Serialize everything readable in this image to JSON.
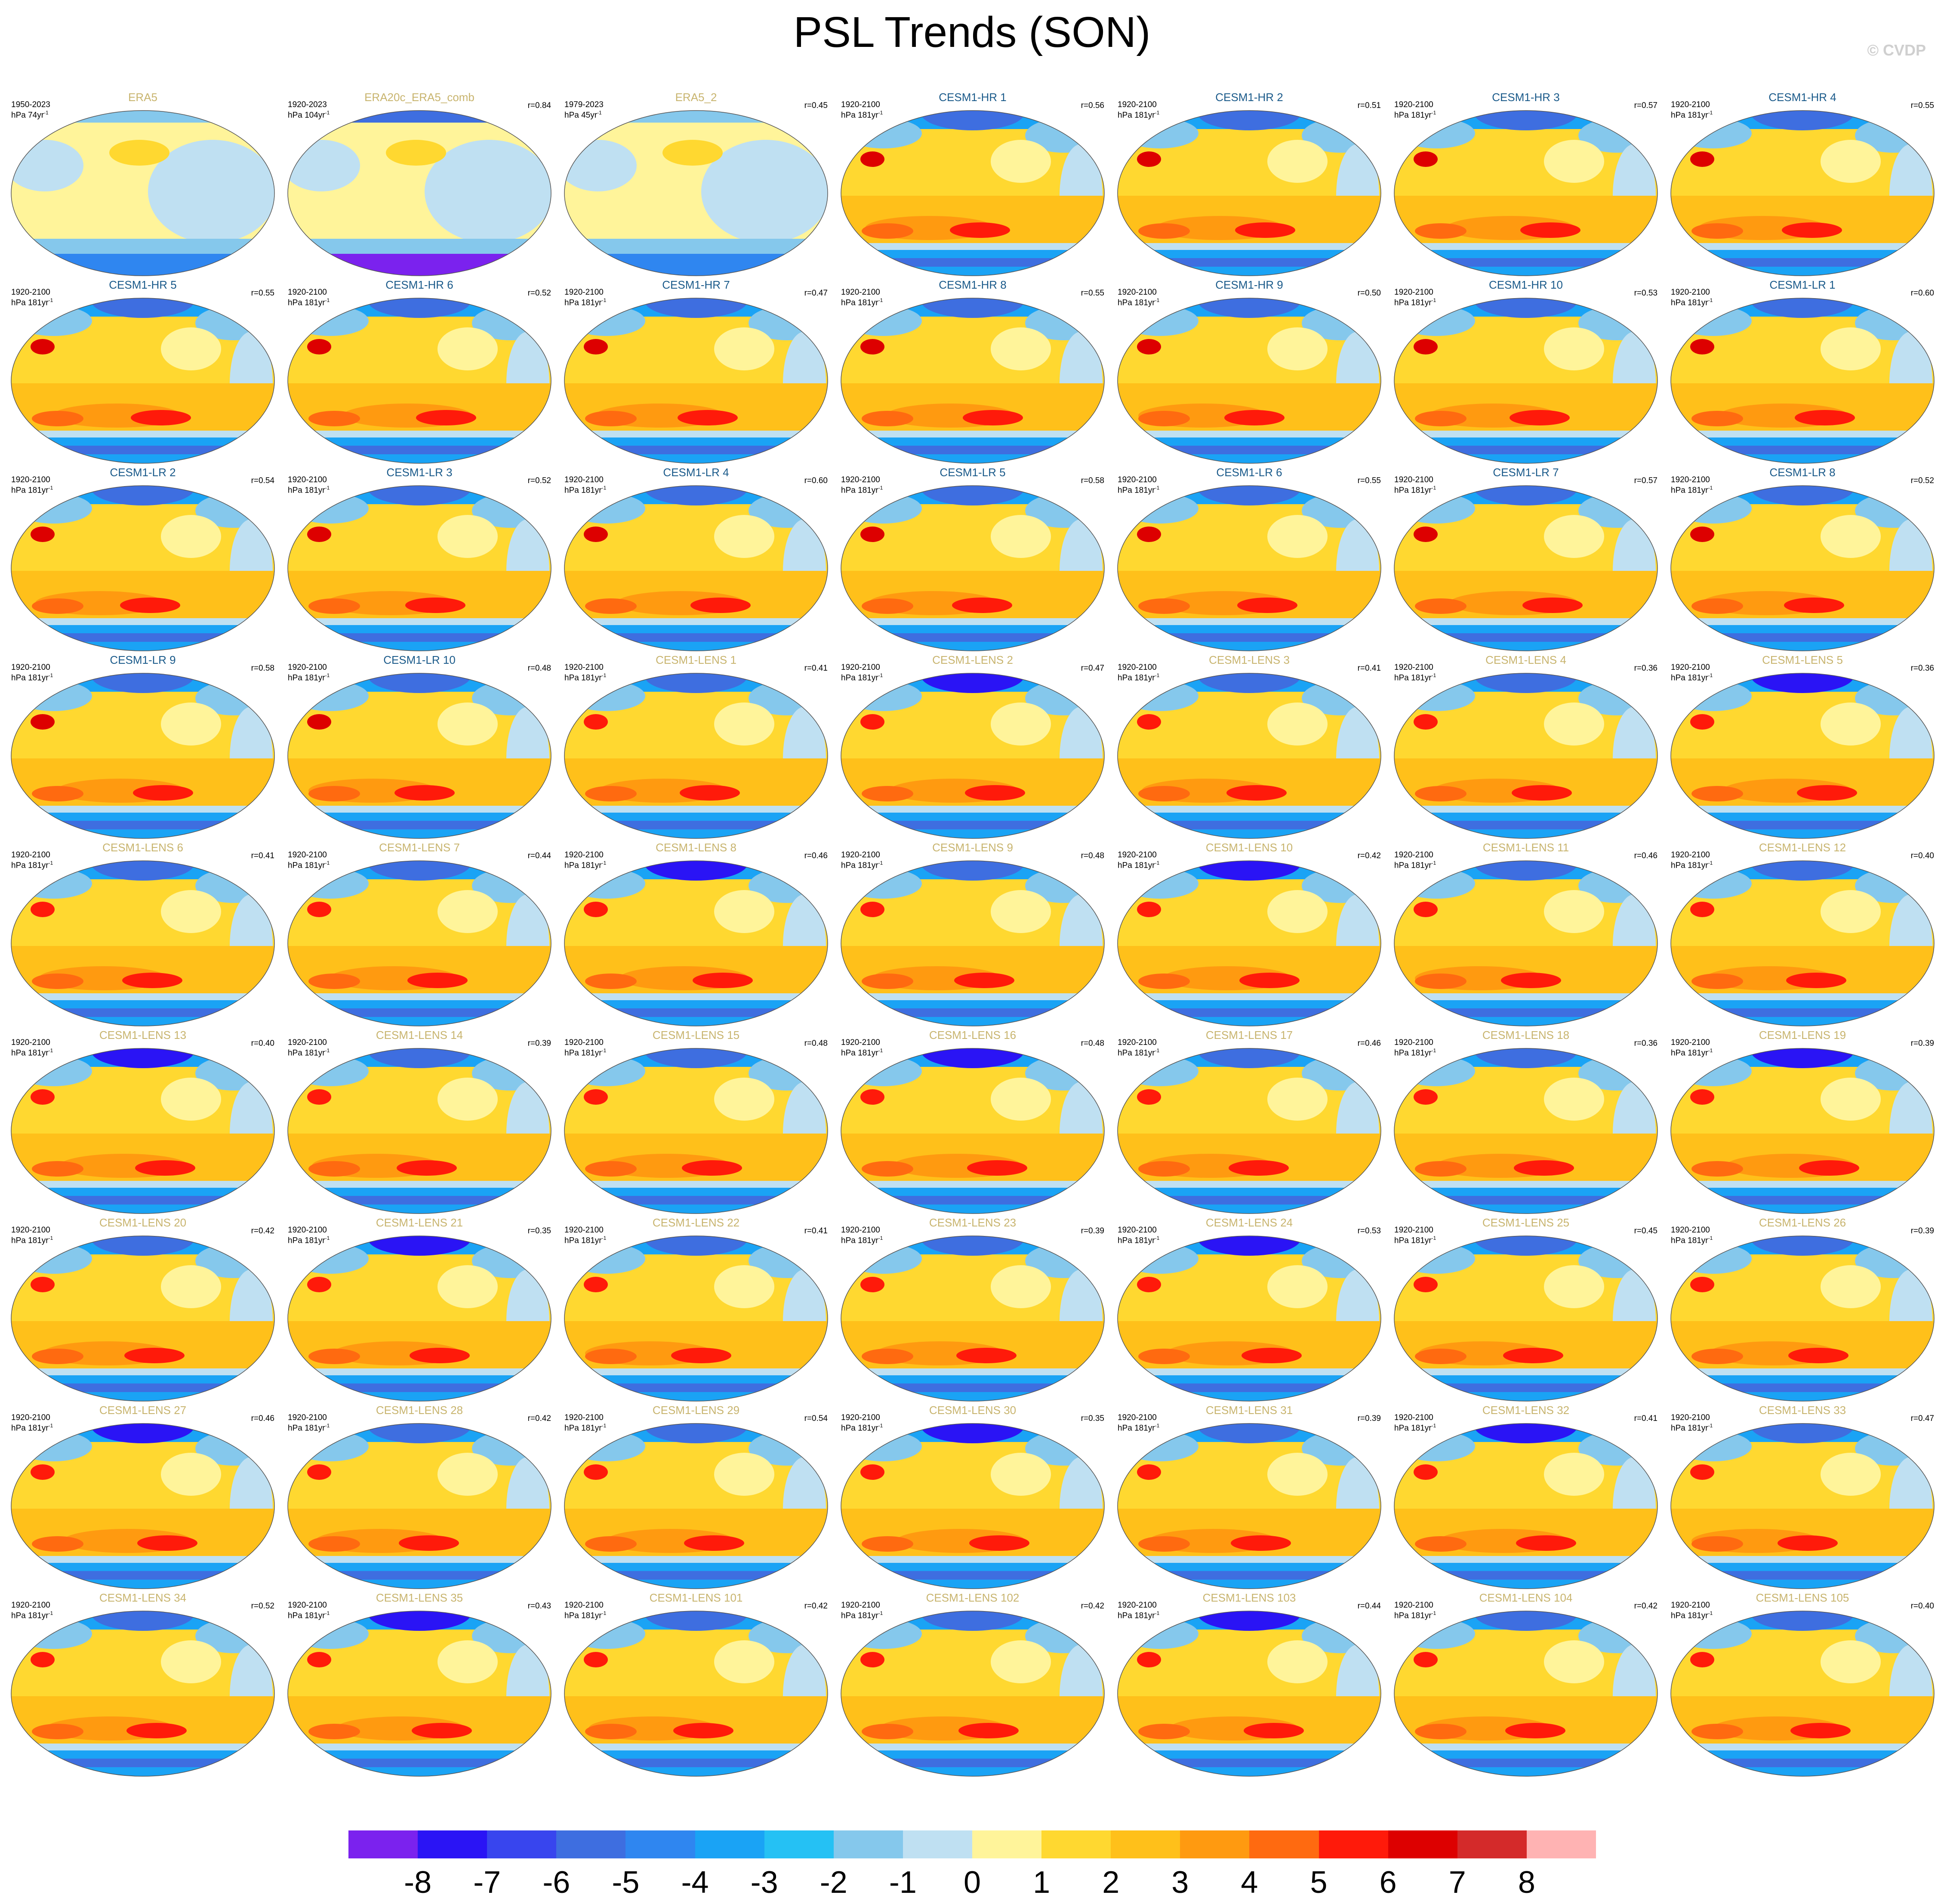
{
  "title": "PSL Trends (SON)",
  "credit": "© CVDP",
  "panels": [
    {
      "name": "ERA5",
      "period": "1950-2023",
      "units": "hPa 74yr",
      "r": "",
      "kind": "obs"
    },
    {
      "name": "ERA20c_ERA5_comb",
      "period": "1920-2023",
      "units": "hPa 104yr",
      "r": "r=0.84",
      "kind": "obs"
    },
    {
      "name": "ERA5_2",
      "period": "1979-2023",
      "units": "hPa 45yr",
      "r": "r=0.45",
      "kind": "obs"
    },
    {
      "name": "CESM1-HR 1",
      "period": "1920-2100",
      "units": "hPa 181yr",
      "r": "r=0.56",
      "kind": "hr"
    },
    {
      "name": "CESM1-HR 2",
      "period": "1920-2100",
      "units": "hPa 181yr",
      "r": "r=0.51",
      "kind": "hr"
    },
    {
      "name": "CESM1-HR 3",
      "period": "1920-2100",
      "units": "hPa 181yr",
      "r": "r=0.57",
      "kind": "hr"
    },
    {
      "name": "CESM1-HR 4",
      "period": "1920-2100",
      "units": "hPa 181yr",
      "r": "r=0.55",
      "kind": "hr"
    },
    {
      "name": "CESM1-HR 5",
      "period": "1920-2100",
      "units": "hPa 181yr",
      "r": "r=0.55",
      "kind": "hr"
    },
    {
      "name": "CESM1-HR 6",
      "period": "1920-2100",
      "units": "hPa 181yr",
      "r": "r=0.52",
      "kind": "hr"
    },
    {
      "name": "CESM1-HR 7",
      "period": "1920-2100",
      "units": "hPa 181yr",
      "r": "r=0.47",
      "kind": "hr"
    },
    {
      "name": "CESM1-HR 8",
      "period": "1920-2100",
      "units": "hPa 181yr",
      "r": "r=0.55",
      "kind": "hr"
    },
    {
      "name": "CESM1-HR 9",
      "period": "1920-2100",
      "units": "hPa 181yr",
      "r": "r=0.50",
      "kind": "hr"
    },
    {
      "name": "CESM1-HR 10",
      "period": "1920-2100",
      "units": "hPa 181yr",
      "r": "r=0.53",
      "kind": "hr"
    },
    {
      "name": "CESM1-LR 1",
      "period": "1920-2100",
      "units": "hPa 181yr",
      "r": "r=0.60",
      "kind": "lr"
    },
    {
      "name": "CESM1-LR 2",
      "period": "1920-2100",
      "units": "hPa 181yr",
      "r": "r=0.54",
      "kind": "lr"
    },
    {
      "name": "CESM1-LR 3",
      "period": "1920-2100",
      "units": "hPa 181yr",
      "r": "r=0.52",
      "kind": "lr"
    },
    {
      "name": "CESM1-LR 4",
      "period": "1920-2100",
      "units": "hPa 181yr",
      "r": "r=0.60",
      "kind": "lr"
    },
    {
      "name": "CESM1-LR 5",
      "period": "1920-2100",
      "units": "hPa 181yr",
      "r": "r=0.58",
      "kind": "lr"
    },
    {
      "name": "CESM1-LR 6",
      "period": "1920-2100",
      "units": "hPa 181yr",
      "r": "r=0.55",
      "kind": "lr"
    },
    {
      "name": "CESM1-LR 7",
      "period": "1920-2100",
      "units": "hPa 181yr",
      "r": "r=0.57",
      "kind": "lr"
    },
    {
      "name": "CESM1-LR 8",
      "period": "1920-2100",
      "units": "hPa 181yr",
      "r": "r=0.52",
      "kind": "lr"
    },
    {
      "name": "CESM1-LR 9",
      "period": "1920-2100",
      "units": "hPa 181yr",
      "r": "r=0.58",
      "kind": "lr"
    },
    {
      "name": "CESM1-LR 10",
      "period": "1920-2100",
      "units": "hPa 181yr",
      "r": "r=0.48",
      "kind": "lr"
    },
    {
      "name": "CESM1-LENS 1",
      "period": "1920-2100",
      "units": "hPa 181yr",
      "r": "r=0.41",
      "kind": "lens"
    },
    {
      "name": "CESM1-LENS 2",
      "period": "1920-2100",
      "units": "hPa 181yr",
      "r": "r=0.47",
      "kind": "lens"
    },
    {
      "name": "CESM1-LENS 3",
      "period": "1920-2100",
      "units": "hPa 181yr",
      "r": "r=0.41",
      "kind": "lens"
    },
    {
      "name": "CESM1-LENS 4",
      "period": "1920-2100",
      "units": "hPa 181yr",
      "r": "r=0.36",
      "kind": "lens"
    },
    {
      "name": "CESM1-LENS 5",
      "period": "1920-2100",
      "units": "hPa 181yr",
      "r": "r=0.36",
      "kind": "lens"
    },
    {
      "name": "CESM1-LENS 6",
      "period": "1920-2100",
      "units": "hPa 181yr",
      "r": "r=0.41",
      "kind": "lens"
    },
    {
      "name": "CESM1-LENS 7",
      "period": "1920-2100",
      "units": "hPa 181yr",
      "r": "r=0.44",
      "kind": "lens"
    },
    {
      "name": "CESM1-LENS 8",
      "period": "1920-2100",
      "units": "hPa 181yr",
      "r": "r=0.46",
      "kind": "lens"
    },
    {
      "name": "CESM1-LENS 9",
      "period": "1920-2100",
      "units": "hPa 181yr",
      "r": "r=0.48",
      "kind": "lens"
    },
    {
      "name": "CESM1-LENS 10",
      "period": "1920-2100",
      "units": "hPa 181yr",
      "r": "r=0.42",
      "kind": "lens"
    },
    {
      "name": "CESM1-LENS 11",
      "period": "1920-2100",
      "units": "hPa 181yr",
      "r": "r=0.46",
      "kind": "lens"
    },
    {
      "name": "CESM1-LENS 12",
      "period": "1920-2100",
      "units": "hPa 181yr",
      "r": "r=0.40",
      "kind": "lens"
    },
    {
      "name": "CESM1-LENS 13",
      "period": "1920-2100",
      "units": "hPa 181yr",
      "r": "r=0.40",
      "kind": "lens"
    },
    {
      "name": "CESM1-LENS 14",
      "period": "1920-2100",
      "units": "hPa 181yr",
      "r": "r=0.39",
      "kind": "lens"
    },
    {
      "name": "CESM1-LENS 15",
      "period": "1920-2100",
      "units": "hPa 181yr",
      "r": "r=0.48",
      "kind": "lens"
    },
    {
      "name": "CESM1-LENS 16",
      "period": "1920-2100",
      "units": "hPa 181yr",
      "r": "r=0.48",
      "kind": "lens"
    },
    {
      "name": "CESM1-LENS 17",
      "period": "1920-2100",
      "units": "hPa 181yr",
      "r": "r=0.46",
      "kind": "lens"
    },
    {
      "name": "CESM1-LENS 18",
      "period": "1920-2100",
      "units": "hPa 181yr",
      "r": "r=0.36",
      "kind": "lens"
    },
    {
      "name": "CESM1-LENS 19",
      "period": "1920-2100",
      "units": "hPa 181yr",
      "r": "r=0.39",
      "kind": "lens"
    },
    {
      "name": "CESM1-LENS 20",
      "period": "1920-2100",
      "units": "hPa 181yr",
      "r": "r=0.42",
      "kind": "lens"
    },
    {
      "name": "CESM1-LENS 21",
      "period": "1920-2100",
      "units": "hPa 181yr",
      "r": "r=0.35",
      "kind": "lens"
    },
    {
      "name": "CESM1-LENS 22",
      "period": "1920-2100",
      "units": "hPa 181yr",
      "r": "r=0.41",
      "kind": "lens"
    },
    {
      "name": "CESM1-LENS 23",
      "period": "1920-2100",
      "units": "hPa 181yr",
      "r": "r=0.39",
      "kind": "lens"
    },
    {
      "name": "CESM1-LENS 24",
      "period": "1920-2100",
      "units": "hPa 181yr",
      "r": "r=0.53",
      "kind": "lens"
    },
    {
      "name": "CESM1-LENS 25",
      "period": "1920-2100",
      "units": "hPa 181yr",
      "r": "r=0.45",
      "kind": "lens"
    },
    {
      "name": "CESM1-LENS 26",
      "period": "1920-2100",
      "units": "hPa 181yr",
      "r": "r=0.39",
      "kind": "lens"
    },
    {
      "name": "CESM1-LENS 27",
      "period": "1920-2100",
      "units": "hPa 181yr",
      "r": "r=0.46",
      "kind": "lens"
    },
    {
      "name": "CESM1-LENS 28",
      "period": "1920-2100",
      "units": "hPa 181yr",
      "r": "r=0.42",
      "kind": "lens"
    },
    {
      "name": "CESM1-LENS 29",
      "period": "1920-2100",
      "units": "hPa 181yr",
      "r": "r=0.54",
      "kind": "lens"
    },
    {
      "name": "CESM1-LENS 30",
      "period": "1920-2100",
      "units": "hPa 181yr",
      "r": "r=0.35",
      "kind": "lens"
    },
    {
      "name": "CESM1-LENS 31",
      "period": "1920-2100",
      "units": "hPa 181yr",
      "r": "r=0.39",
      "kind": "lens"
    },
    {
      "name": "CESM1-LENS 32",
      "period": "1920-2100",
      "units": "hPa 181yr",
      "r": "r=0.41",
      "kind": "lens"
    },
    {
      "name": "CESM1-LENS 33",
      "period": "1920-2100",
      "units": "hPa 181yr",
      "r": "r=0.47",
      "kind": "lens"
    },
    {
      "name": "CESM1-LENS 34",
      "period": "1920-2100",
      "units": "hPa 181yr",
      "r": "r=0.52",
      "kind": "lens"
    },
    {
      "name": "CESM1-LENS 35",
      "period": "1920-2100",
      "units": "hPa 181yr",
      "r": "r=0.43",
      "kind": "lens"
    },
    {
      "name": "CESM1-LENS 101",
      "period": "1920-2100",
      "units": "hPa 181yr",
      "r": "r=0.42",
      "kind": "lens"
    },
    {
      "name": "CESM1-LENS 102",
      "period": "1920-2100",
      "units": "hPa 181yr",
      "r": "r=0.42",
      "kind": "lens"
    },
    {
      "name": "CESM1-LENS 103",
      "period": "1920-2100",
      "units": "hPa 181yr",
      "r": "r=0.44",
      "kind": "lens"
    },
    {
      "name": "CESM1-LENS 104",
      "period": "1920-2100",
      "units": "hPa 181yr",
      "r": "r=0.42",
      "kind": "lens"
    },
    {
      "name": "CESM1-LENS 105",
      "period": "1920-2100",
      "units": "hPa 181yr",
      "r": "r=0.40",
      "kind": "lens"
    }
  ],
  "units_exponent": "-1",
  "title_colors": {
    "obs": "#c8b46e",
    "hr": "#1a5a8a",
    "lr": "#1a5a8a",
    "lens": "#c8b46e"
  },
  "colorbar": {
    "colors": [
      "#7b22ee",
      "#2a14f5",
      "#3845ee",
      "#3e6ee0",
      "#2f86f0",
      "#1aa3f5",
      "#25c1f4",
      "#85c8ec",
      "#bfe0f2",
      "#fff49a",
      "#ffd830",
      "#ffc01a",
      "#ff9a10",
      "#ff6a10",
      "#ff1a0a",
      "#dd0000",
      "#d42a2a",
      "#ffb3b3"
    ],
    "ticks": [
      "-8",
      "-7",
      "-6",
      "-5",
      "-4",
      "-3",
      "-2",
      "-1",
      "0",
      "1",
      "2",
      "3",
      "4",
      "5",
      "6",
      "7",
      "8"
    ]
  }
}
